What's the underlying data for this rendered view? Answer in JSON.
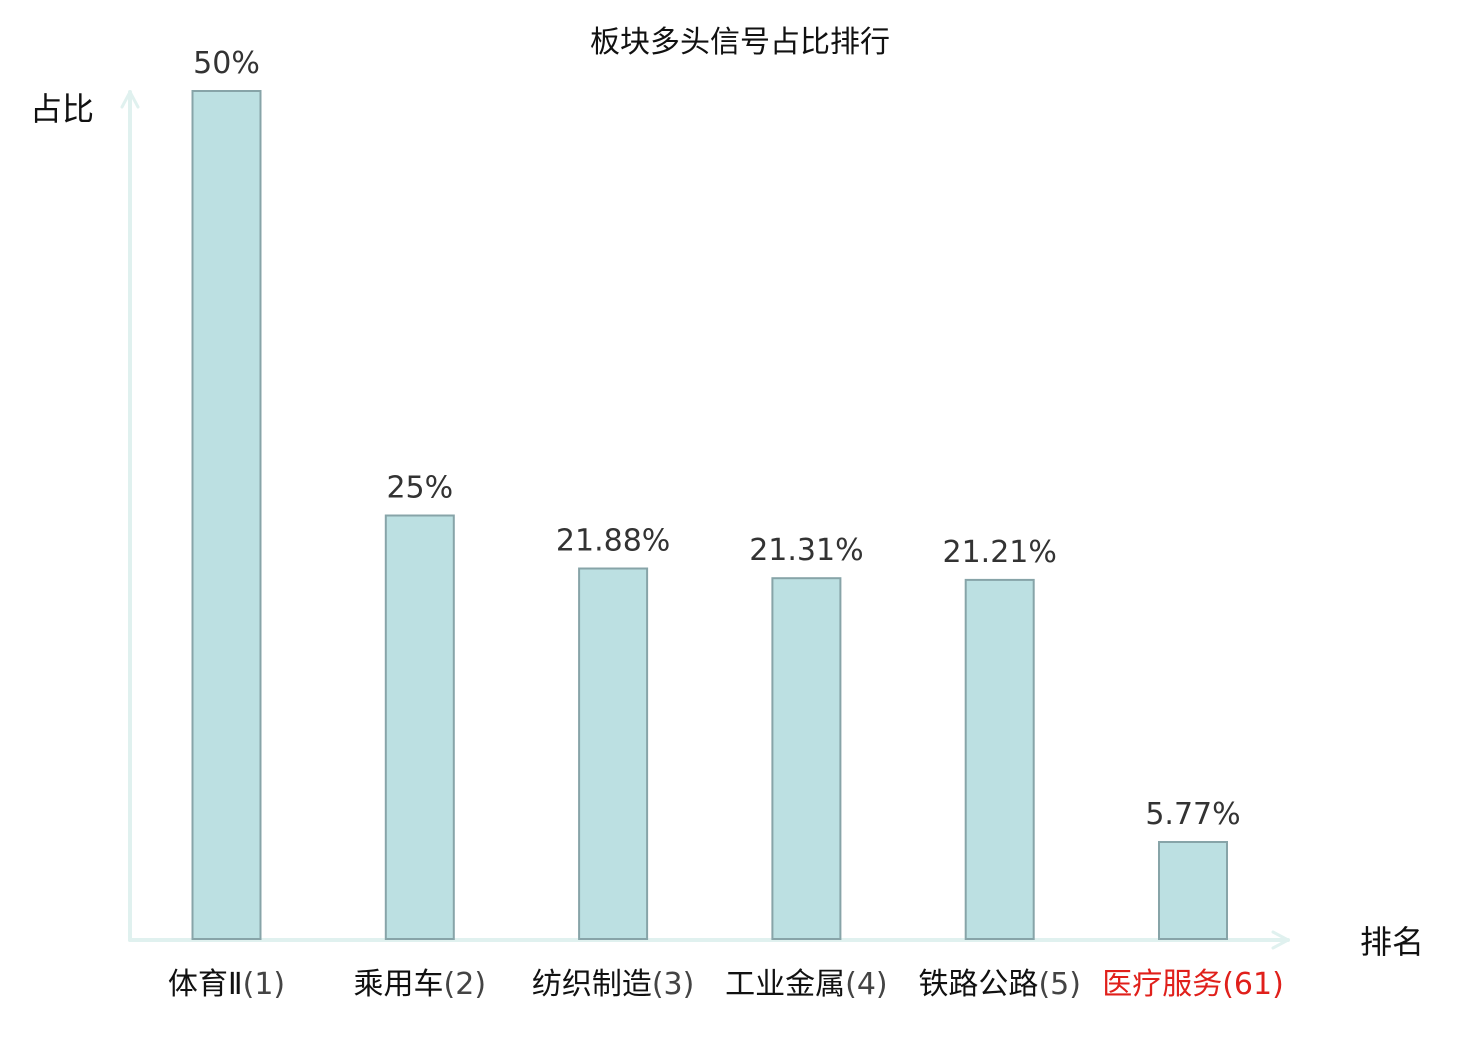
{
  "chart_data": {
    "type": "bar",
    "title": "板块多头信号占比排行",
    "ylabel": "占比",
    "xlabel": "排名",
    "ylim": [
      0,
      50
    ],
    "grid": false,
    "legend": "none",
    "categories": [
      {
        "name": "体育Ⅱ",
        "rank": "(1)",
        "highlight": false
      },
      {
        "name": "乘用车",
        "rank": "(2)",
        "highlight": false
      },
      {
        "name": "纺织制造",
        "rank": "(3)",
        "highlight": false
      },
      {
        "name": "工业金属",
        "rank": "(4)",
        "highlight": false
      },
      {
        "name": "铁路公路",
        "rank": "(5)",
        "highlight": false
      },
      {
        "name": "医疗服务",
        "rank": "(61)",
        "highlight": true
      }
    ],
    "values": [
      50,
      25,
      21.88,
      21.31,
      21.21,
      5.77
    ],
    "value_labels": [
      "50%",
      "25%",
      "21.88%",
      "21.31%",
      "21.21%",
      "5.77%"
    ],
    "colors": {
      "bar_fill": "#bce0e2",
      "bar_stroke": "#87a4a8",
      "axis": "#e0f1ef",
      "text": "#111111",
      "value_text": "#333333",
      "rank_text": "#444444",
      "highlight": "#e0201b"
    }
  }
}
